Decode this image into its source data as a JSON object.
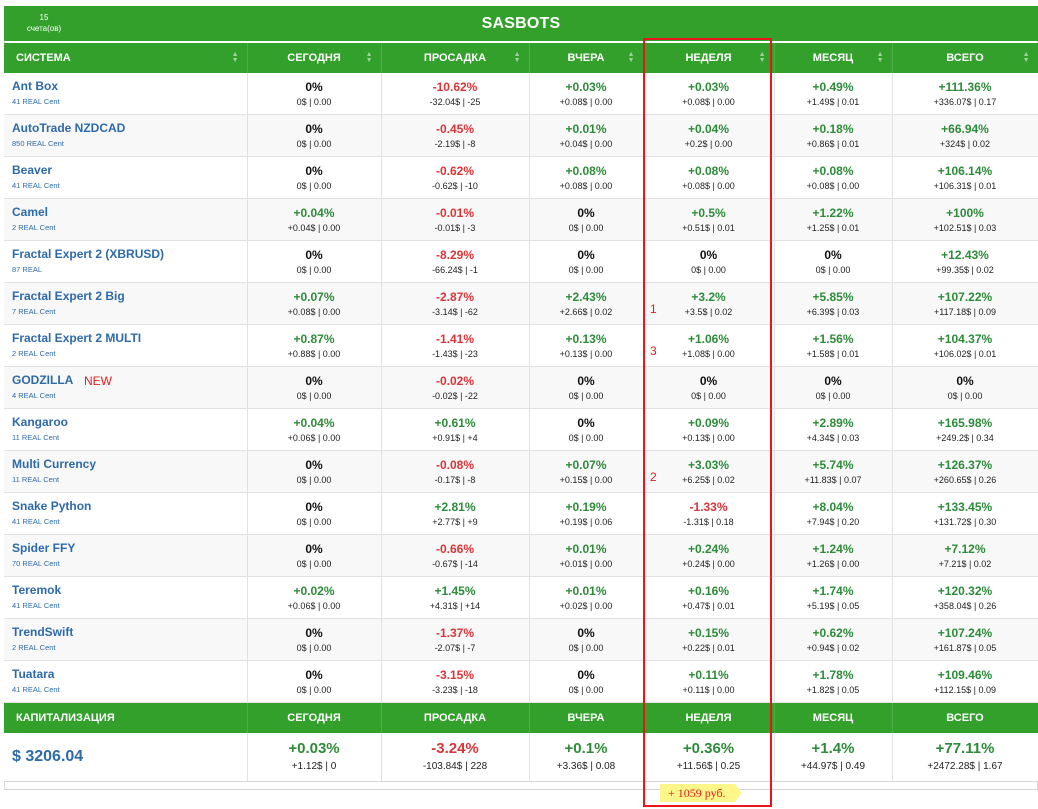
{
  "header": {
    "title": "SASBOTS",
    "accounts_count": "15",
    "accounts_label": "счета(ов)"
  },
  "columns": [
    "СИСТЕМА",
    "СЕГОДНЯ",
    "ПРОСАДКА",
    "ВЧЕРА",
    "НЕДЕЛЯ",
    "МЕСЯЦ",
    "ВСЕГО"
  ],
  "rows": [
    {
      "name": "Ant Box",
      "account": "41 REAL Cent",
      "new": "",
      "mark": "",
      "cells": [
        [
          "0%",
          "0$ | 0.00"
        ],
        [
          "-10.62%",
          "-32.04$ | -25"
        ],
        [
          "+0.03%",
          "+0.08$ | 0.00"
        ],
        [
          "+0.03%",
          "+0.08$ | 0.00"
        ],
        [
          "+0.49%",
          "+1.49$ | 0.01"
        ],
        [
          "+111.36%",
          "+336.07$ | 0.17"
        ]
      ]
    },
    {
      "name": "AutoTrade NZDCAD",
      "account": "850 REAL Cent",
      "new": "",
      "mark": "",
      "cells": [
        [
          "0%",
          "0$ | 0.00"
        ],
        [
          "-0.45%",
          "-2.19$ | -8"
        ],
        [
          "+0.01%",
          "+0.04$ | 0.00"
        ],
        [
          "+0.04%",
          "+0.2$ | 0.00"
        ],
        [
          "+0.18%",
          "+0.86$ | 0.01"
        ],
        [
          "+66.94%",
          "+324$ | 0.02"
        ]
      ]
    },
    {
      "name": "Beaver",
      "account": "41 REAL Cent",
      "new": "",
      "mark": "",
      "cells": [
        [
          "0%",
          "0$ | 0.00"
        ],
        [
          "-0.62%",
          "-0.62$ | -10"
        ],
        [
          "+0.08%",
          "+0.08$ | 0.00"
        ],
        [
          "+0.08%",
          "+0.08$ | 0.00"
        ],
        [
          "+0.08%",
          "+0.08$ | 0.00"
        ],
        [
          "+106.14%",
          "+106.31$ | 0.01"
        ]
      ]
    },
    {
      "name": "Camel",
      "account": "2 REAL Cent",
      "new": "",
      "mark": "",
      "cells": [
        [
          "+0.04%",
          "+0.04$ | 0.00"
        ],
        [
          "-0.01%",
          "-0.01$ | -3"
        ],
        [
          "0%",
          "0$ | 0.00"
        ],
        [
          "+0.5%",
          "+0.51$ | 0.01"
        ],
        [
          "+1.22%",
          "+1.25$ | 0.01"
        ],
        [
          "+100%",
          "+102.51$ | 0.03"
        ]
      ]
    },
    {
      "name": "Fractal Expert 2 (XBRUSD)",
      "account": "87 REAL",
      "new": "",
      "mark": "",
      "cells": [
        [
          "0%",
          "0$ | 0.00"
        ],
        [
          "-8.29%",
          "-66.24$ | -1"
        ],
        [
          "0%",
          "0$ | 0.00"
        ],
        [
          "0%",
          "0$ | 0.00"
        ],
        [
          "0%",
          "0$ | 0.00"
        ],
        [
          "+12.43%",
          "+99.35$ | 0.02"
        ]
      ]
    },
    {
      "name": "Fractal Expert 2 Big",
      "account": "7 REAL Cent",
      "new": "",
      "mark": "1",
      "cells": [
        [
          "+0.07%",
          "+0.08$ | 0.00"
        ],
        [
          "-2.87%",
          "-3.14$ | -62"
        ],
        [
          "+2.43%",
          "+2.66$ | 0.02"
        ],
        [
          "+3.2%",
          "+3.5$ | 0.02"
        ],
        [
          "+5.85%",
          "+6.39$ | 0.03"
        ],
        [
          "+107.22%",
          "+117.18$ | 0.09"
        ]
      ]
    },
    {
      "name": "Fractal Expert 2 MULTI",
      "account": "2 REAL Cent",
      "new": "",
      "mark": "3",
      "cells": [
        [
          "+0.87%",
          "+0.88$ | 0.00"
        ],
        [
          "-1.41%",
          "-1.43$ | -23"
        ],
        [
          "+0.13%",
          "+0.13$ | 0.00"
        ],
        [
          "+1.06%",
          "+1.08$ | 0.00"
        ],
        [
          "+1.56%",
          "+1.58$ | 0.01"
        ],
        [
          "+104.37%",
          "+106.02$ | 0.01"
        ]
      ]
    },
    {
      "name": "GODZILLA",
      "account": "4 REAL Cent",
      "new": "NEW",
      "mark": "",
      "cells": [
        [
          "0%",
          "0$ | 0.00"
        ],
        [
          "-0.02%",
          "-0.02$ | -22"
        ],
        [
          "0%",
          "0$ | 0.00"
        ],
        [
          "0%",
          "0$ | 0.00"
        ],
        [
          "0%",
          "0$ | 0.00"
        ],
        [
          "0%",
          "0$ | 0.00"
        ]
      ]
    },
    {
      "name": "Kangaroo",
      "account": "11 REAL Cent",
      "new": "",
      "mark": "",
      "cells": [
        [
          "+0.04%",
          "+0.06$ | 0.00"
        ],
        [
          "+0.61%",
          "+0.91$ | +4"
        ],
        [
          "0%",
          "0$ | 0.00"
        ],
        [
          "+0.09%",
          "+0.13$ | 0.00"
        ],
        [
          "+2.89%",
          "+4.34$ | 0.03"
        ],
        [
          "+165.98%",
          "+249.2$ | 0.34"
        ]
      ]
    },
    {
      "name": "Multi Currency",
      "account": "11 REAL Cent",
      "new": "",
      "mark": "2",
      "cells": [
        [
          "0%",
          "0$ | 0.00"
        ],
        [
          "-0.08%",
          "-0.17$ | -8"
        ],
        [
          "+0.07%",
          "+0.15$ | 0.00"
        ],
        [
          "+3.03%",
          "+6.25$ | 0.02"
        ],
        [
          "+5.74%",
          "+11.83$ | 0.07"
        ],
        [
          "+126.37%",
          "+260.65$ | 0.26"
        ]
      ]
    },
    {
      "name": "Snake Python",
      "account": "41 REAL Cent",
      "new": "",
      "mark": "",
      "cells": [
        [
          "0%",
          "0$ | 0.00"
        ],
        [
          "+2.81%",
          "+2.77$ | +9"
        ],
        [
          "+0.19%",
          "+0.19$ | 0.06"
        ],
        [
          "-1.33%",
          "-1.31$ | 0.18"
        ],
        [
          "+8.04%",
          "+7.94$ | 0.20"
        ],
        [
          "+133.45%",
          "+131.72$ | 0.30"
        ]
      ]
    },
    {
      "name": "Spider FFY",
      "account": "70 REAL Cent",
      "new": "",
      "mark": "",
      "cells": [
        [
          "0%",
          "0$ | 0.00"
        ],
        [
          "-0.66%",
          "-0.67$ | -14"
        ],
        [
          "+0.01%",
          "+0.01$ | 0.00"
        ],
        [
          "+0.24%",
          "+0.24$ | 0.00"
        ],
        [
          "+1.24%",
          "+1.26$ | 0.00"
        ],
        [
          "+7.12%",
          "+7.21$ | 0.02"
        ]
      ]
    },
    {
      "name": "Teremok",
      "account": "41 REAL Cent",
      "new": "",
      "mark": "",
      "cells": [
        [
          "+0.02%",
          "+0.06$ | 0.00"
        ],
        [
          "+1.45%",
          "+4.31$ | +14"
        ],
        [
          "+0.01%",
          "+0.02$ | 0.00"
        ],
        [
          "+0.16%",
          "+0.47$ | 0.01"
        ],
        [
          "+1.74%",
          "+5.19$ | 0.05"
        ],
        [
          "+120.32%",
          "+358.04$ | 0.26"
        ]
      ]
    },
    {
      "name": "TrendSwift",
      "account": "2 REAL Cent",
      "new": "",
      "mark": "",
      "cells": [
        [
          "0%",
          "0$ | 0.00"
        ],
        [
          "-1.37%",
          "-2.07$ | -7"
        ],
        [
          "0%",
          "0$ | 0.00"
        ],
        [
          "+0.15%",
          "+0.22$ | 0.01"
        ],
        [
          "+0.62%",
          "+0.94$ | 0.02"
        ],
        [
          "+107.24%",
          "+161.87$ | 0.05"
        ]
      ]
    },
    {
      "name": "Tuatara",
      "account": "41 REAL Cent",
      "new": "",
      "mark": "",
      "cells": [
        [
          "0%",
          "0$ | 0.00"
        ],
        [
          "-3.15%",
          "-3.23$ | -18"
        ],
        [
          "0%",
          "0$ | 0.00"
        ],
        [
          "+0.11%",
          "+0.11$ | 0.00"
        ],
        [
          "+1.78%",
          "+1.82$ | 0.05"
        ],
        [
          "+109.46%",
          "+112.15$ | 0.09"
        ]
      ]
    }
  ],
  "footer": {
    "columns": [
      "КАПИТАЛИЗАЦИЯ",
      "СЕГОДНЯ",
      "ПРОСАДКА",
      "ВЧЕРА",
      "НЕДЕЛЯ",
      "МЕСЯЦ",
      "ВСЕГО"
    ],
    "capitalization": "$ 3206.04",
    "cells": [
      [
        "+0.03%",
        "+1.12$ | 0"
      ],
      [
        "-3.24%",
        "-103.84$ | 228"
      ],
      [
        "+0.1%",
        "+3.36$ | 0.08"
      ],
      [
        "+0.36%",
        "+11.56$ | 0.25"
      ],
      [
        "+1.4%",
        "+44.97$ | 0.49"
      ],
      [
        "+77.11%",
        "+2472.28$ | 1.67"
      ]
    ]
  },
  "annotation": {
    "note": "+ 1059 руб.",
    "highlight_color": "#e8151b"
  },
  "colors": {
    "brand_green": "#33a02c",
    "positive": "#2e8b3a",
    "negative": "#d7373a",
    "link": "#2e6aa8"
  }
}
